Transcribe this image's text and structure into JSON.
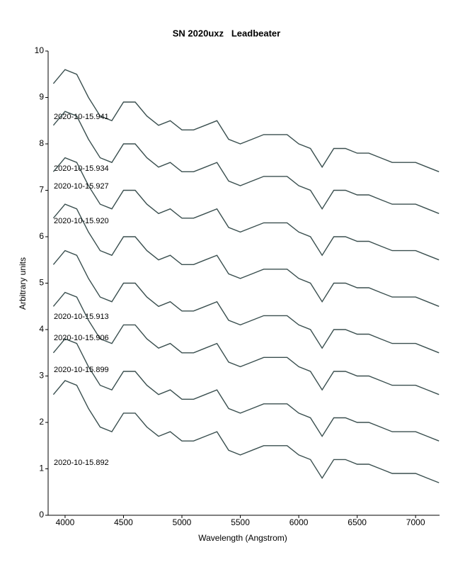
{
  "chart_data": {
    "type": "line",
    "title": "SN 2020uxz   Leadbeater",
    "x_label": "Wavelength (Angstrom)",
    "y_label": "Arbitrary units",
    "x": [
      3900,
      4000,
      4100,
      4200,
      4300,
      4400,
      4500,
      4600,
      4700,
      4800,
      4900,
      5000,
      5100,
      5200,
      5300,
      5400,
      5500,
      5600,
      5700,
      5800,
      5900,
      6000,
      6100,
      6200,
      6300,
      6400,
      6500,
      6600,
      6700,
      6800,
      6900,
      7000,
      7100,
      7200
    ],
    "series": [
      {
        "name": "2020-10-15.941",
        "color": "#3a4f4f",
        "values": [
          9.3,
          9.6,
          9.5,
          9.0,
          8.6,
          8.5,
          8.9,
          8.9,
          8.6,
          8.4,
          8.5,
          8.3,
          8.3,
          8.4,
          8.5,
          8.1,
          8.0,
          8.1,
          8.2,
          8.2,
          8.2,
          8.0,
          7.9,
          7.5,
          7.9,
          7.9,
          7.8,
          7.8,
          7.7,
          7.6,
          7.6,
          7.6,
          7.5,
          7.4
        ]
      },
      {
        "name": "2020-10-15.934",
        "color": "#3a4f4f",
        "values": [
          8.4,
          8.7,
          8.6,
          8.1,
          7.7,
          7.6,
          8.0,
          8.0,
          7.7,
          7.5,
          7.6,
          7.4,
          7.4,
          7.5,
          7.6,
          7.2,
          7.1,
          7.2,
          7.3,
          7.3,
          7.3,
          7.1,
          7.0,
          6.6,
          7.0,
          7.0,
          6.9,
          6.9,
          6.8,
          6.7,
          6.7,
          6.7,
          6.6,
          6.5
        ]
      },
      {
        "name": "2020-10-15.927",
        "color": "#3a4f4f",
        "values": [
          7.4,
          7.7,
          7.6,
          7.1,
          6.7,
          6.6,
          7.0,
          7.0,
          6.7,
          6.5,
          6.6,
          6.4,
          6.4,
          6.5,
          6.6,
          6.2,
          6.1,
          6.2,
          6.3,
          6.3,
          6.3,
          6.1,
          6.0,
          5.6,
          6.0,
          6.0,
          5.9,
          5.9,
          5.8,
          5.7,
          5.7,
          5.7,
          5.6,
          5.5
        ]
      },
      {
        "name": "2020-10-15.920",
        "color": "#3a4f4f",
        "values": [
          6.4,
          6.7,
          6.6,
          6.1,
          5.7,
          5.6,
          6.0,
          6.0,
          5.7,
          5.5,
          5.6,
          5.4,
          5.4,
          5.5,
          5.6,
          5.2,
          5.1,
          5.2,
          5.3,
          5.3,
          5.3,
          5.1,
          5.0,
          4.6,
          5.0,
          5.0,
          4.9,
          4.9,
          4.8,
          4.7,
          4.7,
          4.7,
          4.6,
          4.5
        ]
      },
      {
        "name": "2020-10-15.913",
        "color": "#3a4f4f",
        "values": [
          5.4,
          5.7,
          5.6,
          5.1,
          4.7,
          4.6,
          5.0,
          5.0,
          4.7,
          4.5,
          4.6,
          4.4,
          4.4,
          4.5,
          4.6,
          4.2,
          4.1,
          4.2,
          4.3,
          4.3,
          4.3,
          4.1,
          4.0,
          3.6,
          4.0,
          4.0,
          3.9,
          3.9,
          3.8,
          3.7,
          3.7,
          3.7,
          3.6,
          3.5
        ]
      },
      {
        "name": "2020-10-15.906",
        "color": "#3a4f4f",
        "values": [
          4.5,
          4.8,
          4.7,
          4.2,
          3.8,
          3.7,
          4.1,
          4.1,
          3.8,
          3.6,
          3.7,
          3.5,
          3.5,
          3.6,
          3.7,
          3.3,
          3.2,
          3.3,
          3.4,
          3.4,
          3.4,
          3.2,
          3.1,
          2.7,
          3.1,
          3.1,
          3.0,
          3.0,
          2.9,
          2.8,
          2.8,
          2.8,
          2.7,
          2.6
        ]
      },
      {
        "name": "2020-10-15.899",
        "color": "#3a4f4f",
        "values": [
          3.5,
          3.8,
          3.7,
          3.2,
          2.8,
          2.7,
          3.1,
          3.1,
          2.8,
          2.6,
          2.7,
          2.5,
          2.5,
          2.6,
          2.7,
          2.3,
          2.2,
          2.3,
          2.4,
          2.4,
          2.4,
          2.2,
          2.1,
          1.7,
          2.1,
          2.1,
          2.0,
          2.0,
          1.9,
          1.8,
          1.8,
          1.8,
          1.7,
          1.6
        ]
      },
      {
        "name": "2020-10-15.892",
        "color": "#3a4f4f",
        "values": [
          2.6,
          2.9,
          2.8,
          2.3,
          1.9,
          1.8,
          2.2,
          2.2,
          1.9,
          1.7,
          1.8,
          1.6,
          1.6,
          1.7,
          1.8,
          1.4,
          1.3,
          1.4,
          1.5,
          1.5,
          1.5,
          1.3,
          1.2,
          0.8,
          1.2,
          1.2,
          1.1,
          1.1,
          1.0,
          0.9,
          0.9,
          0.9,
          0.8,
          0.7
        ]
      }
    ],
    "xlim": [
      3855,
      7205
    ],
    "xticks": [
      4000,
      4500,
      5000,
      5500,
      6000,
      6500,
      7000
    ],
    "ylim": [
      0,
      10
    ],
    "yticks": [
      0,
      1,
      2,
      3,
      4,
      5,
      6,
      7,
      8,
      9,
      10
    ],
    "grid": false
  }
}
